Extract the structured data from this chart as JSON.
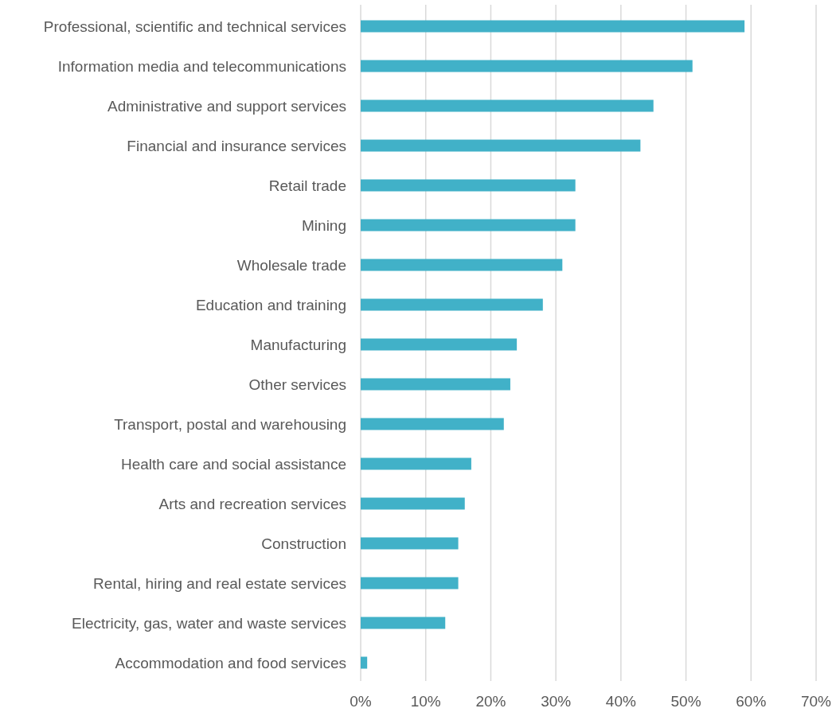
{
  "chart_data": {
    "type": "bar",
    "orientation": "horizontal",
    "categories": [
      "Professional, scientific and technical services",
      "Information media and telecommunications",
      "Administrative and support services",
      "Financial and insurance services",
      "Retail trade",
      "Mining",
      "Wholesale trade",
      "Education and training",
      "Manufacturing",
      "Other services",
      "Transport, postal and warehousing",
      "Health care and social assistance",
      "Arts and recreation services",
      "Construction",
      "Rental, hiring and real estate services",
      "Electricity, gas, water and waste services",
      "Accommodation and food services"
    ],
    "values": [
      0.59,
      0.51,
      0.45,
      0.43,
      0.33,
      0.33,
      0.31,
      0.28,
      0.24,
      0.23,
      0.22,
      0.17,
      0.16,
      0.15,
      0.15,
      0.13,
      0.01
    ],
    "color": "#41b1c8",
    "xlim": [
      0,
      0.7
    ],
    "xticks": [
      {
        "value": 0,
        "label": "0%"
      },
      {
        "value": 0.1,
        "label": "10%"
      },
      {
        "value": 0.2,
        "label": "20%"
      },
      {
        "value": 0.3,
        "label": "30%"
      },
      {
        "value": 0.4,
        "label": "40%"
      },
      {
        "value": 0.5,
        "label": "50%"
      },
      {
        "value": 0.6,
        "label": "60%"
      },
      {
        "value": 0.7,
        "label": "70%"
      }
    ],
    "grid": "x"
  }
}
